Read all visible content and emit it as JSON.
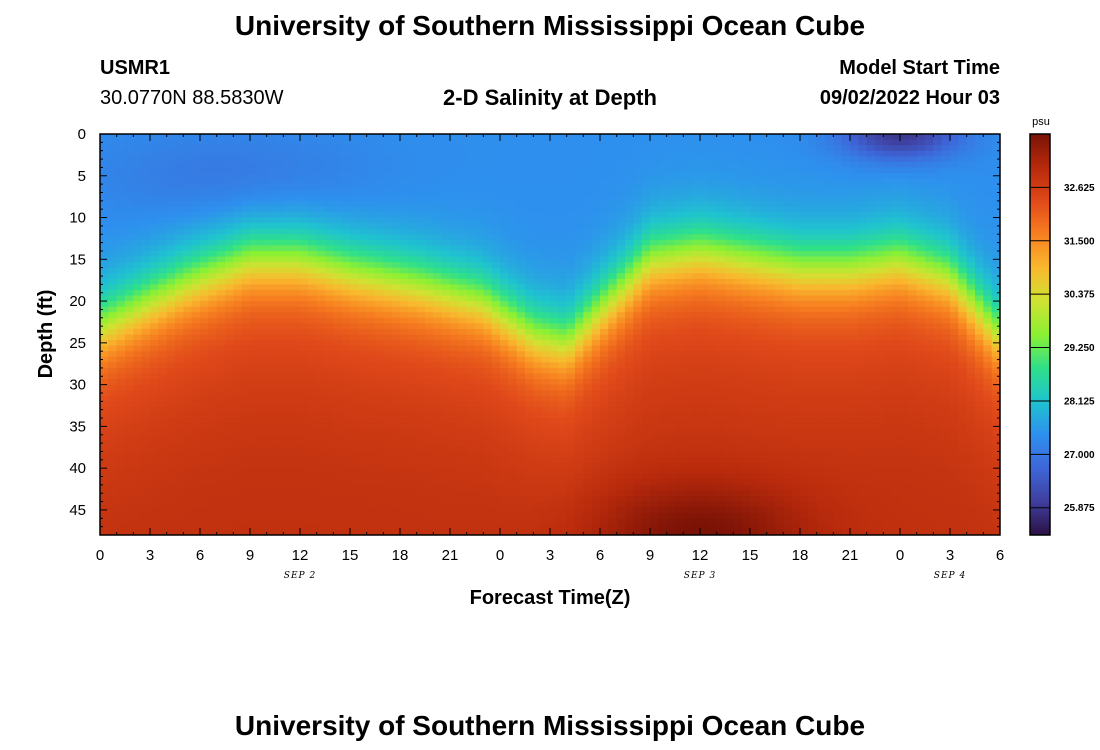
{
  "page": {
    "title": "University of Southern Mississippi Ocean Cube",
    "footer_title": "University of Southern Mississippi Ocean Cube"
  },
  "station": {
    "id": "USMR1",
    "coords": "30.0770N  88.5830W"
  },
  "model": {
    "start_label": "Model Start Time",
    "start_value": "09/02/2022 Hour 03"
  },
  "chart_data": {
    "type": "heatmap",
    "title": "2-D Salinity at Depth",
    "xlabel": "Forecast Time(Z)",
    "ylabel": "Depth (ft)",
    "x_range": [
      0,
      54
    ],
    "x_unit": "hours from 09/02 00Z",
    "x_tick_values": [
      0,
      3,
      6,
      9,
      12,
      15,
      18,
      21,
      24,
      27,
      30,
      33,
      36,
      39,
      42,
      45,
      48,
      51,
      54
    ],
    "x_tick_labels": [
      "0",
      "3",
      "6",
      "9",
      "12",
      "15",
      "18",
      "21",
      "0",
      "3",
      "6",
      "9",
      "12",
      "15",
      "18",
      "21",
      "0",
      "3",
      "6"
    ],
    "date_labels": [
      {
        "text": "SEP 2",
        "hour": 12
      },
      {
        "text": "SEP 3",
        "hour": 36
      },
      {
        "text": "SEP 4",
        "hour": 51
      }
    ],
    "y_range": [
      0,
      48
    ],
    "y_tick_values": [
      0,
      5,
      10,
      15,
      20,
      25,
      30,
      35,
      40,
      45
    ],
    "y_tick_labels": [
      "0",
      "5",
      "10",
      "15",
      "20",
      "25",
      "30",
      "35",
      "40",
      "45"
    ],
    "colorbar": {
      "unit": "psu",
      "range": [
        25.3,
        33.75
      ],
      "tick_labels": [
        "25.875",
        "27.000",
        "28.125",
        "29.250",
        "30.375",
        "31.500",
        "32.625"
      ],
      "tick_values": [
        25.875,
        27.0,
        28.125,
        29.25,
        30.375,
        31.5,
        32.625
      ],
      "colors": [
        "#2b1145",
        "#3f3f9e",
        "#3e66d8",
        "#2e90ee",
        "#1fc3cf",
        "#2fe08a",
        "#8cf033",
        "#d0e232",
        "#f9b82e",
        "#f77f20",
        "#e0491a",
        "#b82a0c",
        "#7a1206"
      ]
    },
    "halocline_depth_ft": [
      {
        "hour": 0,
        "depth": 23
      },
      {
        "hour": 2,
        "depth": 21
      },
      {
        "hour": 5,
        "depth": 18
      },
      {
        "hour": 9,
        "depth": 15
      },
      {
        "hour": 12,
        "depth": 15
      },
      {
        "hour": 15,
        "depth": 16.5
      },
      {
        "hour": 19,
        "depth": 18
      },
      {
        "hour": 23,
        "depth": 20
      },
      {
        "hour": 26,
        "depth": 24
      },
      {
        "hour": 28,
        "depth": 25
      },
      {
        "hour": 30,
        "depth": 21
      },
      {
        "hour": 33,
        "depth": 15
      },
      {
        "hour": 36,
        "depth": 14
      },
      {
        "hour": 39,
        "depth": 15
      },
      {
        "hour": 42,
        "depth": 16
      },
      {
        "hour": 45,
        "depth": 16
      },
      {
        "hour": 48,
        "depth": 15
      },
      {
        "hour": 51,
        "depth": 17
      },
      {
        "hour": 54,
        "depth": 24
      }
    ],
    "surface_salinity_psu": 27.4,
    "bottom_salinity_psu": 32.9,
    "max_bottom_salinity_psu": 33.7,
    "max_bottom_hour": 36,
    "min_surface_salinity_psu": 26.0,
    "min_surface_hour": 48
  }
}
